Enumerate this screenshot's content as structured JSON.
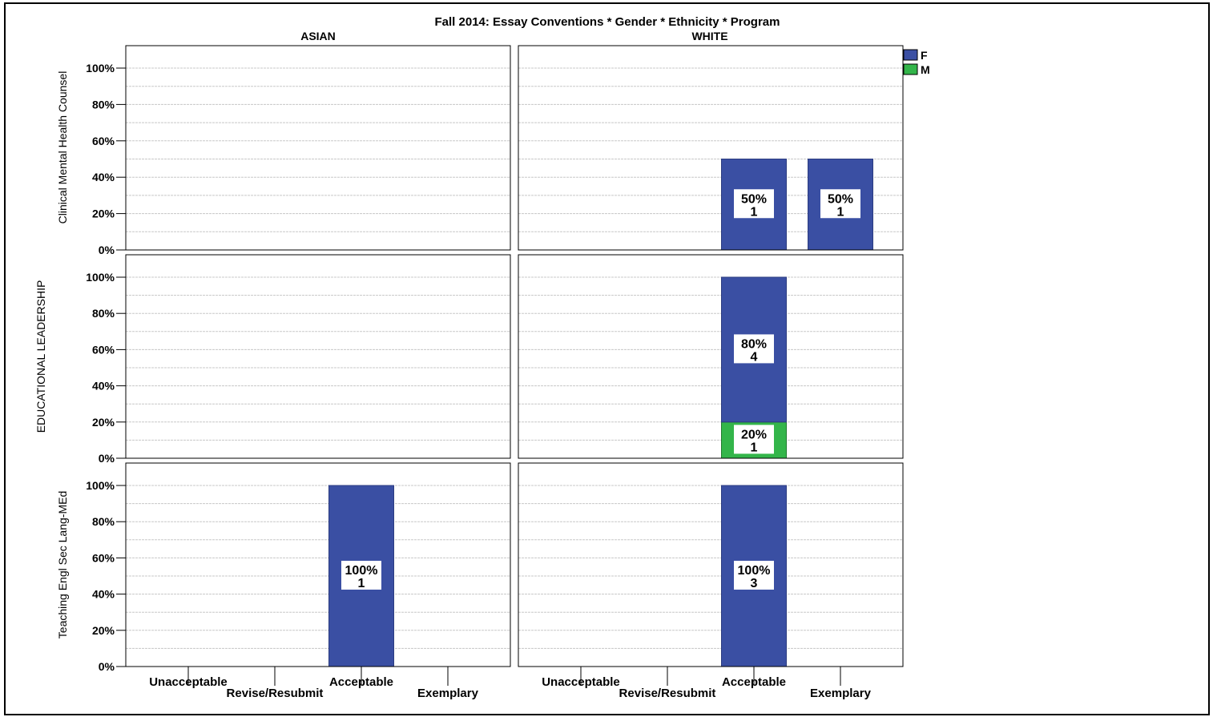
{
  "chart_data": {
    "type": "bar",
    "title": "Fall 2014: Essay Conventions * Gender * Ethnicity * Program",
    "columns": [
      "ASIAN",
      "WHITE"
    ],
    "rows": [
      "Clinical Mental Health Counsel",
      "EDUCATIONAL LEADERSHIP",
      "Teaching Engl Sec Lang-MEd"
    ],
    "categories": [
      "Unacceptable",
      "Revise/Resubmit",
      "Acceptable",
      "Exemplary"
    ],
    "y_ticks": [
      "0%",
      "20%",
      "40%",
      "60%",
      "80%",
      "100%"
    ],
    "ylim": [
      0,
      100
    ],
    "stacked": true,
    "grid": true,
    "legend_position": "top-right",
    "legend": [
      {
        "name": "F",
        "color": "#3a4fa3"
      },
      {
        "name": "M",
        "color": "#33b54a"
      }
    ],
    "panels": [
      {
        "row": 0,
        "col": 0,
        "bars": []
      },
      {
        "row": 0,
        "col": 1,
        "bars": [
          {
            "category": "Acceptable",
            "segments": [
              {
                "series": "F",
                "value": 50,
                "label_pct": "50%",
                "label_n": "1"
              }
            ]
          },
          {
            "category": "Exemplary",
            "segments": [
              {
                "series": "F",
                "value": 50,
                "label_pct": "50%",
                "label_n": "1"
              }
            ]
          }
        ]
      },
      {
        "row": 1,
        "col": 0,
        "bars": []
      },
      {
        "row": 1,
        "col": 1,
        "bars": [
          {
            "category": "Acceptable",
            "segments": [
              {
                "series": "M",
                "value": 20,
                "label_pct": "20%",
                "label_n": "1"
              },
              {
                "series": "F",
                "value": 80,
                "label_pct": "80%",
                "label_n": "4"
              }
            ]
          }
        ]
      },
      {
        "row": 2,
        "col": 0,
        "bars": [
          {
            "category": "Acceptable",
            "segments": [
              {
                "series": "F",
                "value": 100,
                "label_pct": "100%",
                "label_n": "1"
              }
            ]
          }
        ]
      },
      {
        "row": 2,
        "col": 1,
        "bars": [
          {
            "category": "Acceptable",
            "segments": [
              {
                "series": "F",
                "value": 100,
                "label_pct": "100%",
                "label_n": "3"
              }
            ]
          }
        ]
      }
    ]
  }
}
